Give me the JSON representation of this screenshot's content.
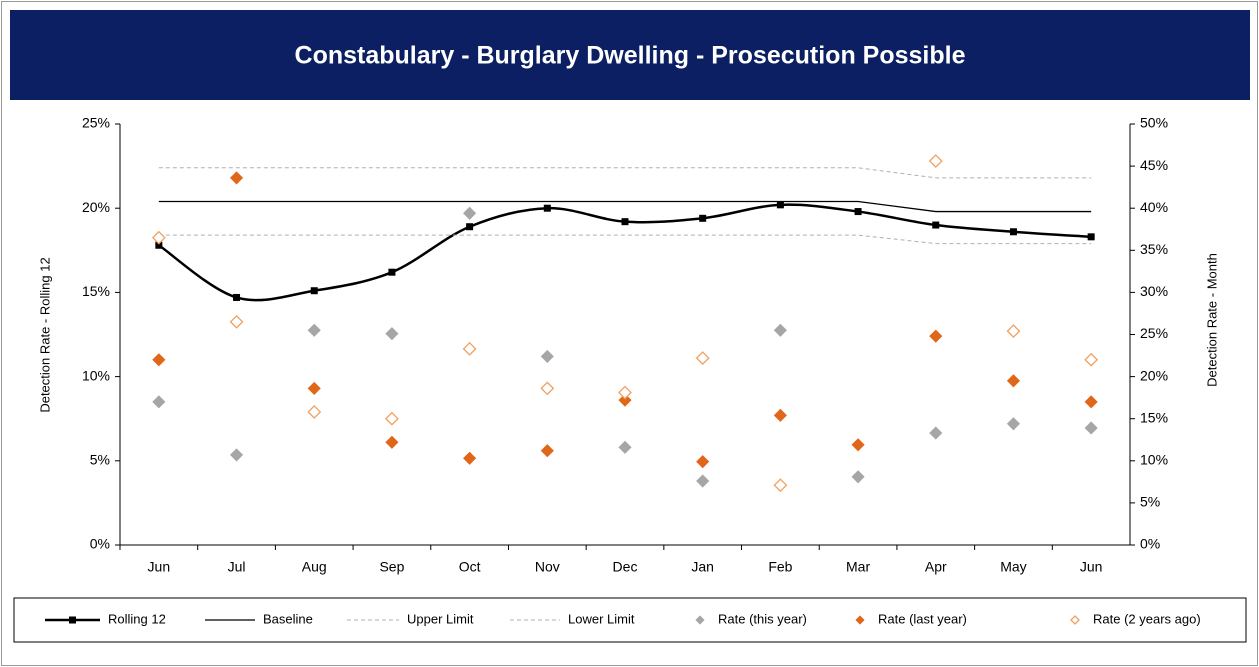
{
  "chart_data": {
    "type": "line",
    "title": "Constabulary - Burglary Dwelling - Prosecution Possible",
    "ylabel": "Detection Rate - Rolling 12",
    "y2label": "Detection Rate - Month",
    "categories": [
      "Jun",
      "Jul",
      "Aug",
      "Sep",
      "Oct",
      "Nov",
      "Dec",
      "Jan",
      "Feb",
      "Mar",
      "Apr",
      "May",
      "Jun"
    ],
    "ylim": [
      0,
      25
    ],
    "yticks": [
      {
        "value": 0,
        "label": "0%"
      },
      {
        "value": 5,
        "label": "5%"
      },
      {
        "value": 10,
        "label": "10%"
      },
      {
        "value": 15,
        "label": "15%"
      },
      {
        "value": 20,
        "label": "20%"
      },
      {
        "value": 25,
        "label": "25%"
      }
    ],
    "y2lim": [
      0,
      50
    ],
    "y2ticks": [
      {
        "value": 0,
        "label": "0%"
      },
      {
        "value": 5,
        "label": "5%"
      },
      {
        "value": 10,
        "label": "10%"
      },
      {
        "value": 15,
        "label": "15%"
      },
      {
        "value": 20,
        "label": "20%"
      },
      {
        "value": 25,
        "label": "25%"
      },
      {
        "value": 30,
        "label": "30%"
      },
      {
        "value": 35,
        "label": "35%"
      },
      {
        "value": 40,
        "label": "40%"
      },
      {
        "value": 45,
        "label": "45%"
      },
      {
        "value": 50,
        "label": "50%"
      }
    ],
    "grid": false,
    "legend": "bottom",
    "series": [
      {
        "name": "Rolling 12",
        "color": "#000000",
        "line": "smooth",
        "marker": "square",
        "values": [
          17.8,
          14.7,
          15.1,
          16.2,
          18.9,
          20.0,
          19.2,
          19.4,
          20.2,
          19.8,
          19.0,
          18.6,
          18.3
        ]
      },
      {
        "name": "Baseline",
        "color": "#000000",
        "line": "solid",
        "marker": "none",
        "values": [
          20.4,
          20.4,
          20.4,
          20.4,
          20.4,
          20.4,
          20.4,
          20.4,
          20.4,
          20.4,
          19.8,
          19.8,
          19.8
        ]
      },
      {
        "name": "Upper Limit",
        "color": "#b0b0b0",
        "line": "dashed",
        "marker": "none",
        "values": [
          22.4,
          22.4,
          22.4,
          22.4,
          22.4,
          22.4,
          22.4,
          22.4,
          22.4,
          22.4,
          21.8,
          21.8,
          21.8
        ]
      },
      {
        "name": "Lower Limit",
        "color": "#b0b0b0",
        "line": "dashed",
        "marker": "none",
        "values": [
          18.4,
          18.4,
          18.4,
          18.4,
          18.4,
          18.4,
          18.4,
          18.4,
          18.4,
          18.4,
          17.9,
          17.9,
          17.9
        ]
      },
      {
        "name": "Rate (this year)",
        "color": "#a6a6a6",
        "line": "none",
        "marker": "diamond",
        "axis": "y2",
        "values": [
          17.0,
          10.7,
          25.5,
          25.1,
          39.4,
          22.4,
          11.6,
          7.6,
          25.5,
          8.1,
          13.3,
          14.4,
          13.9
        ]
      },
      {
        "name": "Rate (last year)",
        "color": "#e0661a",
        "line": "none",
        "marker": "diamond",
        "axis": "y2",
        "values": [
          22.0,
          43.6,
          18.6,
          12.2,
          10.3,
          11.2,
          17.2,
          9.9,
          15.4,
          11.9,
          24.8,
          19.5,
          17.0
        ]
      },
      {
        "name": "Rate (2 years ago)",
        "color": "#f0a060",
        "line": "none",
        "marker": "hollow-diamond",
        "axis": "y2",
        "values": [
          36.5,
          26.5,
          15.8,
          15.0,
          23.3,
          18.6,
          18.1,
          22.2,
          7.1,
          null,
          45.6,
          25.4,
          22.0
        ]
      }
    ]
  }
}
